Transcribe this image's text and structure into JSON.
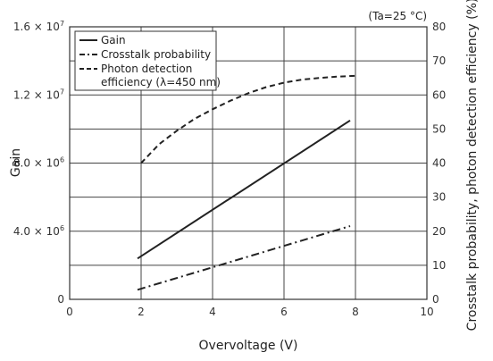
{
  "chart_data": {
    "type": "line",
    "condition_note": "(Ta=25 °C)",
    "xlabel": "Overvoltage (V)",
    "ylabel_left": "Gain",
    "ylabel_right": "Crosstalk probability, photon detection efficiency (%)",
    "xlim": [
      0,
      10
    ],
    "ylim_left": [
      0,
      16000000
    ],
    "ylim_right": [
      0,
      80
    ],
    "grid": true,
    "legend_position": "top-left",
    "x_ticks": [
      0,
      2,
      4,
      6,
      8,
      10
    ],
    "x_tick_labels": [
      "0",
      "2",
      "4",
      "6",
      "8",
      "10"
    ],
    "left_ticks": [
      {
        "value": 0,
        "mantissa": "0",
        "exp": ""
      },
      {
        "value": 4000000,
        "mantissa": "4.0 × 10",
        "exp": "6"
      },
      {
        "value": 8000000,
        "mantissa": "8.0 × 10",
        "exp": "6"
      },
      {
        "value": 12000000,
        "mantissa": "1.2 × 10",
        "exp": "7"
      },
      {
        "value": 16000000,
        "mantissa": "1.6 × 10",
        "exp": "7"
      }
    ],
    "right_ticks": [
      0,
      10,
      20,
      30,
      40,
      50,
      60,
      70,
      80
    ],
    "series": [
      {
        "name": "Gain",
        "axis": "left",
        "style": "solid",
        "color": "#222222",
        "x": [
          1.9,
          7.85
        ],
        "y": [
          2400000,
          10500000
        ]
      },
      {
        "name": "Crosstalk probability",
        "axis": "right",
        "style": "dashdot",
        "color": "#222222",
        "x": [
          1.9,
          7.85
        ],
        "y": [
          2.8,
          21.5
        ]
      },
      {
        "name": "Photon detection efficiency (λ=450 nm)",
        "legend_lines": [
          "Photon detection",
          "efficiency (λ=450 nm)"
        ],
        "axis": "right",
        "style": "dashed",
        "color": "#222222",
        "x": [
          2.0,
          2.5,
          3.0,
          3.5,
          4.0,
          4.5,
          5.0,
          5.5,
          6.0,
          6.5,
          7.0,
          7.5,
          8.0
        ],
        "y": [
          40.0,
          45.5,
          49.5,
          53.0,
          55.8,
          58.3,
          60.5,
          62.3,
          63.6,
          64.5,
          65.0,
          65.4,
          65.6
        ]
      }
    ]
  }
}
